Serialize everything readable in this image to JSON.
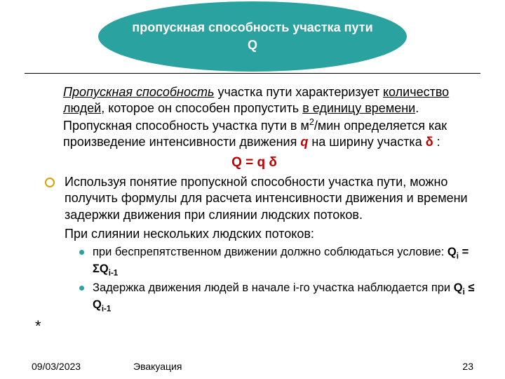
{
  "colors": {
    "ellipse_bg": "#2aa2a0",
    "ellipse_text": "#ffffff",
    "formula_text": "#c00000",
    "bullet_lvl1_border": "#d7a200",
    "bullet_lvl2_fill": "#2aa2a0",
    "body_text": "#000000",
    "background": "#ffffff"
  },
  "typography": {
    "title_fontsize_pt": 18,
    "body_fontsize_pt": 18,
    "sub_fontsize_pt": 16.5,
    "footer_fontsize_pt": 14,
    "font_family": "Verdana"
  },
  "ellipse": {
    "line1": "пропускная способность участка пути",
    "line2": "Q"
  },
  "body": {
    "para1_prefix": "Пропускная способность",
    "para1_mid1": " участка пути характеризует ",
    "para1_u1": "количество людей",
    "para1_mid2": ", которое он способен пропустить ",
    "para1_u2": "в единицу времени",
    "para1_mid3": ". Пропускная способность участка пути в м",
    "para1_sup": "2",
    "para1_mid4": "/мин определяется как произведение интенсивности движения ",
    "para1_q": "q",
    "para1_mid5": " на ширину участка ",
    "para1_delta": "δ",
    "para1_end": " :",
    "formula": "Q = q δ",
    "bullet1": "Используя понятие пропускной способности участка пути, можно получить формулы для расчета интенсивности движения и времени задержки движения при слиянии людских потоков.",
    "para2": "При слиянии нескольких людских потоков:",
    "sub1_text": "при беспрепятственном движении должно соблюдаться условие: ",
    "sub1_f_lhs": "Q",
    "sub1_f_lhs_sub": "i",
    "sub1_f_eq": " = Σ",
    "sub1_f_rhs": "Q",
    "sub1_f_rhs_sub": "i-1",
    "sub2_text": "Задержка движения людей в начале i-го участка наблюдается при ",
    "sub2_f_lhs": "Q",
    "sub2_f_lhs_sub": "i",
    "sub2_f_mid": " ≤   ",
    "sub2_f_rhs": "Q",
    "sub2_f_rhs_sub": "i-1",
    "star": "*"
  },
  "footer": {
    "date": "09/03/2023",
    "title": "Эвакуация",
    "page": "23"
  }
}
